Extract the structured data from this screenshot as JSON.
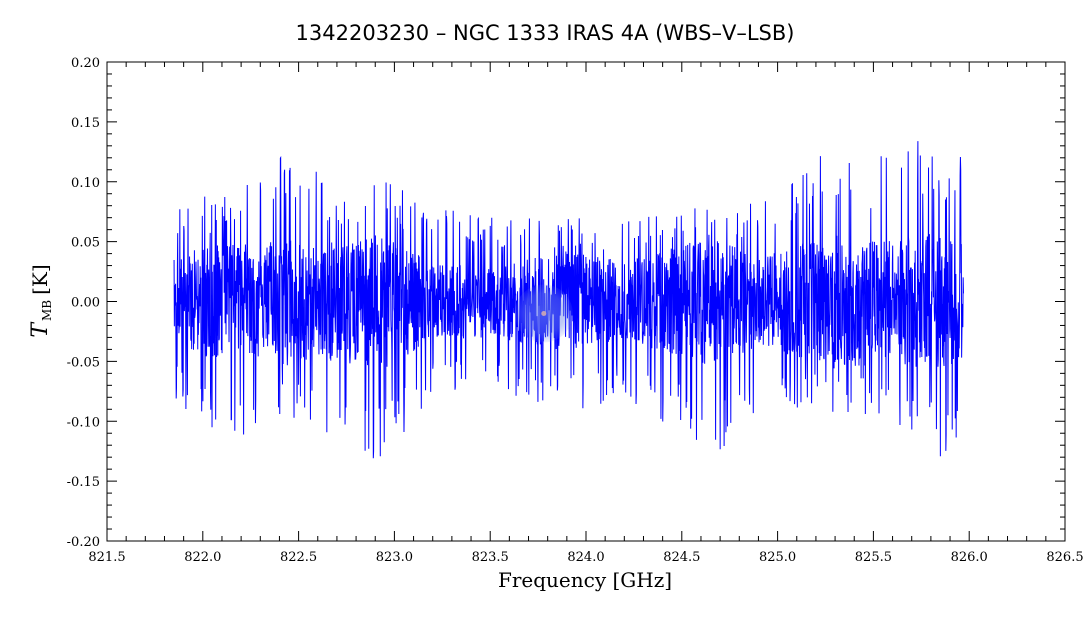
{
  "chart_data": {
    "type": "line",
    "title": "1342203230 – NGC 1333 IRAS 4A (WBS–V–LSB)",
    "xlabel": "Frequency [GHz]",
    "ylabel": {
      "symbol": "T",
      "subscript": "MB",
      "unit": "[K]"
    },
    "xlim": [
      821.5,
      826.5
    ],
    "ylim": [
      -0.2,
      0.2
    ],
    "x_ticks": [
      "821.5",
      "822.0",
      "822.5",
      "823.0",
      "823.5",
      "824.0",
      "824.5",
      "825.0",
      "825.5",
      "826.0",
      "826.5"
    ],
    "y_ticks": [
      "-0.20",
      "-0.15",
      "-0.10",
      "-0.05",
      "0.00",
      "0.05",
      "0.10",
      "0.15",
      "0.20"
    ],
    "grid": false,
    "legend": "none",
    "series": [
      {
        "color": "#0000ff",
        "x_range": [
          821.85,
          825.97
        ],
        "baseline": 0.0,
        "noise_envelope": [
          {
            "x": 821.85,
            "min": -0.085,
            "max": 0.09
          },
          {
            "x": 822.0,
            "min": -0.11,
            "max": 0.09
          },
          {
            "x": 822.2,
            "min": -0.115,
            "max": 0.1
          },
          {
            "x": 822.42,
            "min": -0.1,
            "max": 0.13
          },
          {
            "x": 822.7,
            "min": -0.12,
            "max": 0.1
          },
          {
            "x": 822.96,
            "min": -0.135,
            "max": 0.1
          },
          {
            "x": 823.2,
            "min": -0.08,
            "max": 0.08
          },
          {
            "x": 823.5,
            "min": -0.07,
            "max": 0.07
          },
          {
            "x": 823.9,
            "min": -0.1,
            "max": 0.07
          },
          {
            "x": 824.2,
            "min": -0.08,
            "max": 0.07
          },
          {
            "x": 824.67,
            "min": -0.13,
            "max": 0.08
          },
          {
            "x": 824.9,
            "min": -0.09,
            "max": 0.09
          },
          {
            "x": 825.3,
            "min": -0.1,
            "max": 0.135
          },
          {
            "x": 825.6,
            "min": -0.1,
            "max": 0.12
          },
          {
            "x": 825.76,
            "min": -0.14,
            "max": 0.14
          },
          {
            "x": 825.97,
            "min": -0.12,
            "max": 0.12
          }
        ]
      }
    ]
  },
  "overlay": {
    "marker_x": 823.78,
    "marker_y": -0.01,
    "marker_color": "#6f86e8"
  }
}
